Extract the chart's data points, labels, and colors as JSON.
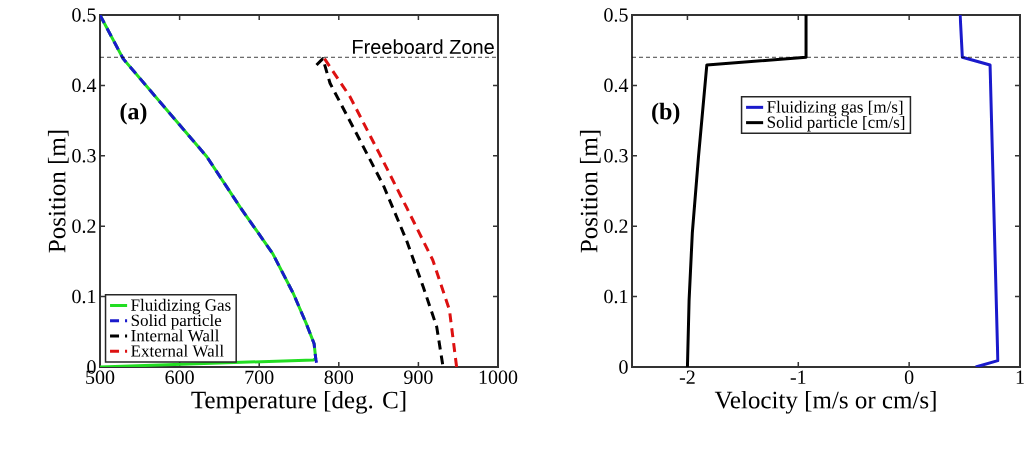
{
  "chart_data": [
    {
      "type": "line",
      "xlabel": "Temperature [deg. C]",
      "ylabel": "Position [m]",
      "annotations": [
        "(a)"
      ],
      "xlim": [
        500,
        1000
      ],
      "ylim": [
        0,
        0.5
      ],
      "xticks": [
        500,
        600,
        700,
        800,
        900,
        1000
      ],
      "yticks": [
        0,
        0.1,
        0.2,
        0.3,
        0.4,
        0.5
      ],
      "grid": false,
      "legend": "bottom left",
      "ref_lines": [
        {
          "axis": "y",
          "value": 0.44,
          "label": "Freeboard Zone",
          "color": "#000000",
          "line_style": "dashed"
        }
      ],
      "series": [
        {
          "name": "Fluidizing Gas",
          "color": "#22dd22",
          "line_style": "solid",
          "x": [
            500,
            529,
            584,
            634,
            676,
            717,
            743,
            759,
            769,
            771,
            768,
            500
          ],
          "values": [
            0.5,
            0.438,
            0.365,
            0.299,
            0.227,
            0.161,
            0.104,
            0.062,
            0.033,
            0.012,
            0.01,
            0
          ]
        },
        {
          "name": "Solid particle",
          "color": "#1a1acc",
          "line_style": "dashed",
          "x": [
            500,
            529,
            584,
            634,
            676,
            717,
            743,
            759,
            769,
            771,
            773
          ],
          "values": [
            0.5,
            0.438,
            0.365,
            0.299,
            0.227,
            0.161,
            0.104,
            0.062,
            0.033,
            0.012,
            0
          ]
        },
        {
          "name": "Internal Wall",
          "color": "#000000",
          "line_style": "dashed",
          "x": [
            772,
            780,
            789,
            822,
            856,
            885,
            906,
            923,
            931
          ],
          "values": [
            0.429,
            0.438,
            0.403,
            0.332,
            0.258,
            0.18,
            0.114,
            0.057,
            0
          ]
        },
        {
          "name": "External Wall",
          "color": "#dd1111",
          "line_style": "dashed",
          "x": [
            782,
            814,
            851,
            885,
            918,
            939,
            948
          ],
          "values": [
            0.438,
            0.384,
            0.303,
            0.227,
            0.152,
            0.081,
            0
          ]
        }
      ]
    },
    {
      "type": "line",
      "xlabel": "Velocity [m/s or cm/s]",
      "ylabel": "Position [m]",
      "annotations": [
        "(b)"
      ],
      "xlim": [
        -2.5,
        1
      ],
      "ylim": [
        0,
        0.5
      ],
      "xticks": [
        -2,
        -1,
        0,
        1
      ],
      "yticks": [
        0,
        0.1,
        0.2,
        0.3,
        0.4,
        0.5
      ],
      "grid": false,
      "legend": "top",
      "ref_lines": [
        {
          "axis": "y",
          "value": 0.44,
          "color": "#000000",
          "line_style": "dashed"
        }
      ],
      "series": [
        {
          "name": "Fluidizing gas [m/s]",
          "color": "#1a1acc",
          "line_style": "solid",
          "x": [
            0.6,
            0.8,
            0.73,
            0.48,
            0.46
          ],
          "values": [
            0,
            0.009,
            0.429,
            0.44,
            0.5
          ]
        },
        {
          "name": "Solid particle [cm/s]",
          "color": "#000000",
          "line_style": "solid",
          "x": [
            -2,
            -1.985,
            -1.956,
            -1.9,
            -1.825,
            -0.93,
            -0.93
          ],
          "values": [
            0,
            0.095,
            0.19,
            0.299,
            0.429,
            0.44,
            0.5
          ]
        }
      ]
    }
  ]
}
